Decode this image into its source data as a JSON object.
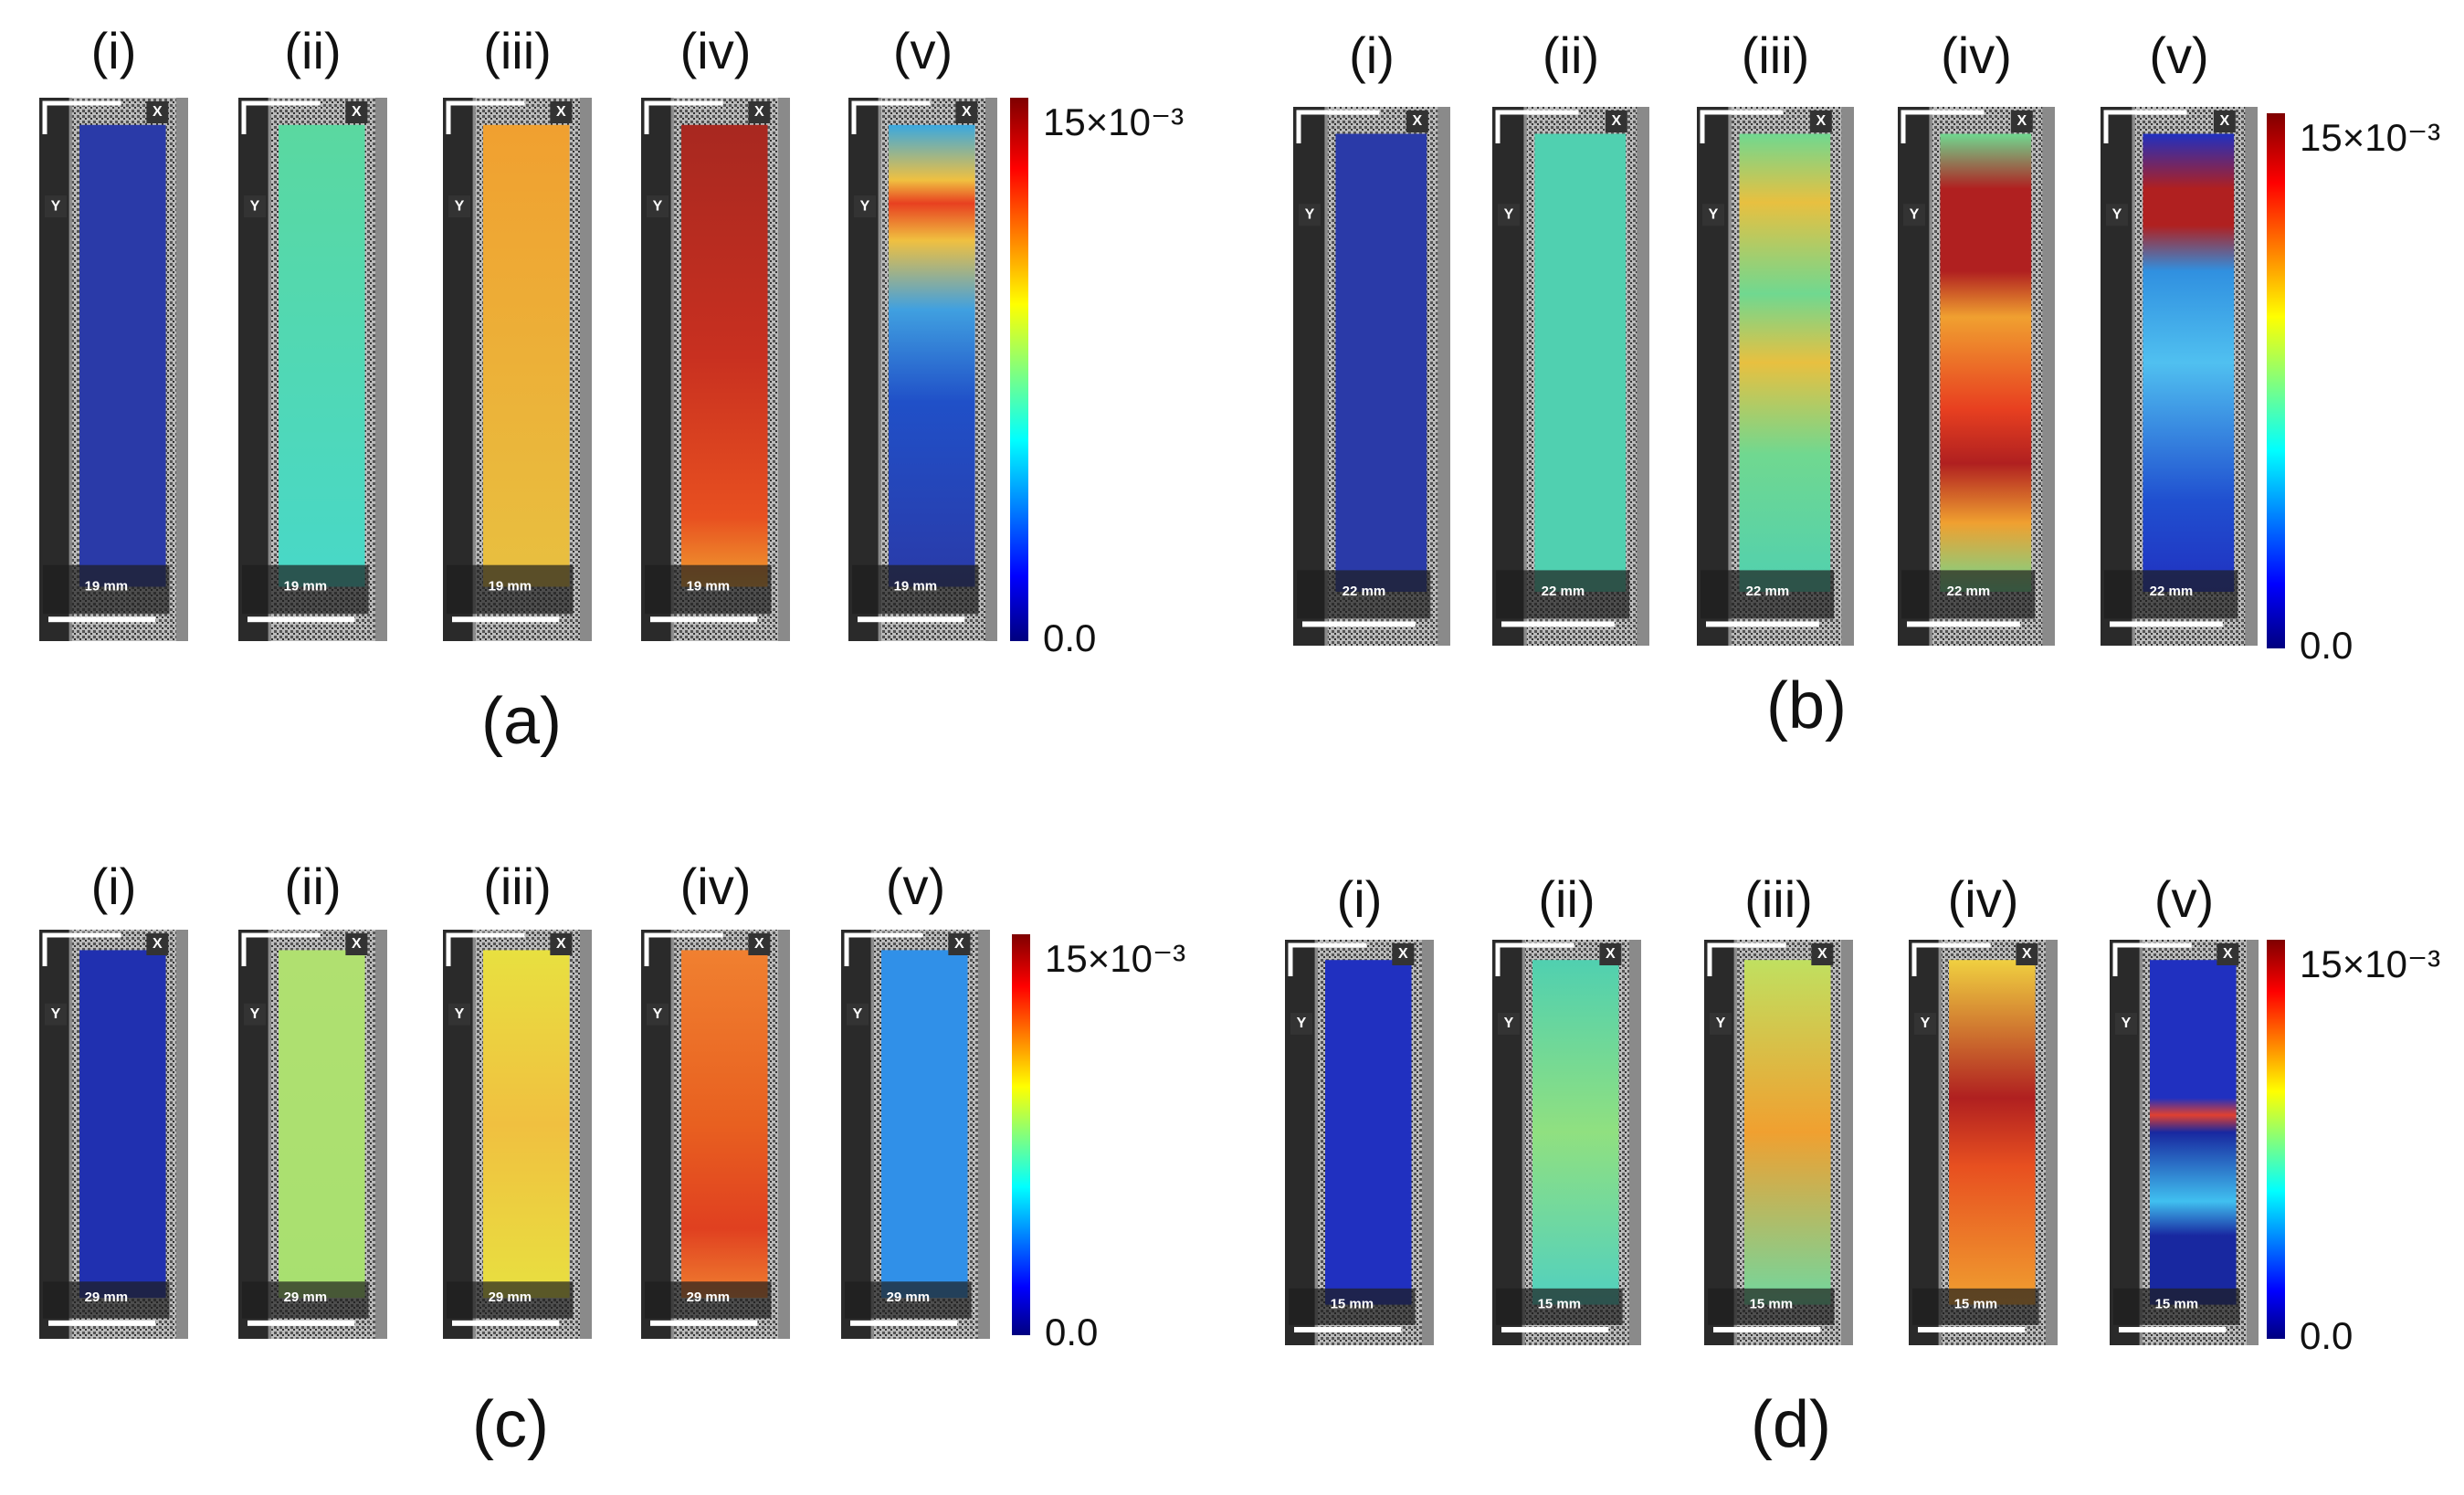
{
  "figure": {
    "panels": [
      {
        "label": "(a)",
        "subpanels": [
          "(i)",
          "(ii)",
          "(iii)",
          "(iv)",
          "(v)"
        ],
        "scale_label": "19 mm",
        "markers": {
          "x": "X",
          "y": "Y"
        },
        "colorbar": {
          "max_label": "15×10⁻³",
          "min_label": "0.0"
        }
      },
      {
        "label": "(b)",
        "subpanels": [
          "(i)",
          "(ii)",
          "(iii)",
          "(iv)",
          "(v)"
        ],
        "scale_label": "22 mm",
        "markers": {
          "x": "X",
          "y": "Y"
        },
        "colorbar": {
          "max_label": "15×10⁻³",
          "min_label": "0.0"
        }
      },
      {
        "label": "(c)",
        "subpanels": [
          "(i)",
          "(ii)",
          "(iii)",
          "(iv)",
          "(v)"
        ],
        "scale_label": "29 mm",
        "markers": {
          "x": "X",
          "y": "Y"
        },
        "colorbar": {
          "max_label": "15×10⁻³",
          "min_label": "0.0"
        }
      },
      {
        "label": "(d)",
        "subpanels": [
          "(i)",
          "(ii)",
          "(iii)",
          "(iv)",
          "(v)"
        ],
        "scale_label": "15 mm",
        "markers": {
          "x": "X",
          "y": "Y"
        },
        "colorbar": {
          "max_label": "15×10⁻³",
          "min_label": "0.0"
        }
      }
    ]
  }
}
